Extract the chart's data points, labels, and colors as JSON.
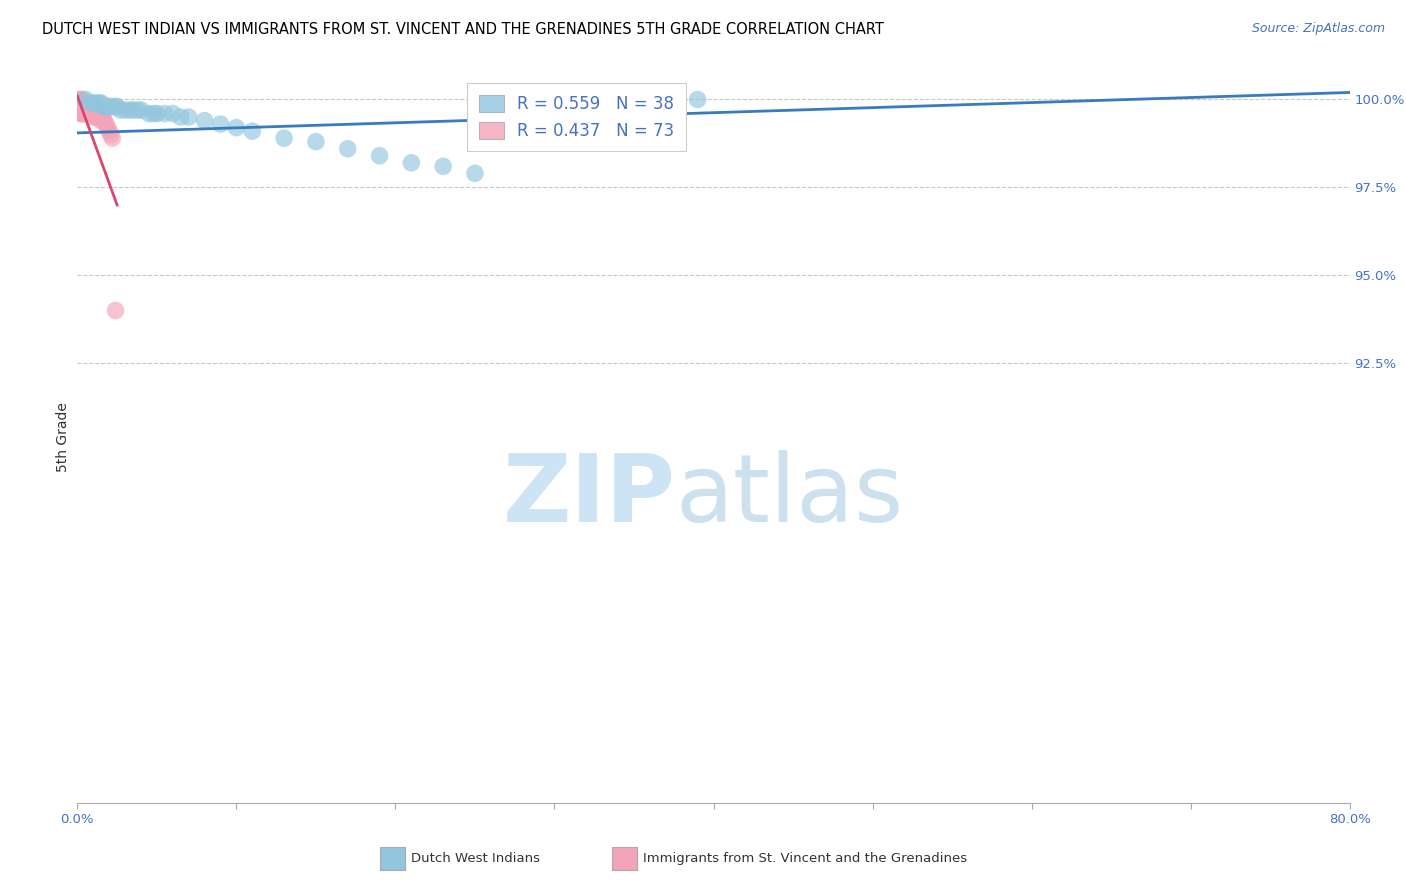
{
  "title": "DUTCH WEST INDIAN VS IMMIGRANTS FROM ST. VINCENT AND THE GRENADINES 5TH GRADE CORRELATION CHART",
  "source": "Source: ZipAtlas.com",
  "ylabel": "5th Grade",
  "xlim": [
    0.0,
    0.8
  ],
  "ylim": [
    0.8,
    1.008
  ],
  "blue_color": "#92c5de",
  "pink_color": "#f4a4b8",
  "blue_line_color": "#3a7abf",
  "pink_line_color": "#d9476e",
  "legend_blue_R": "R = 0.559",
  "legend_blue_N": "N = 38",
  "legend_pink_R": "R = 0.437",
  "legend_pink_N": "N = 73",
  "watermark_zip": "ZIP",
  "watermark_atlas": "atlas",
  "grid_color": "#c8c8c8",
  "background_color": "#ffffff",
  "title_fontsize": 10.5,
  "tick_fontsize": 9.5,
  "legend_fontsize": 12,
  "blue_scatter_x": [
    0.005,
    0.008,
    0.01,
    0.012,
    0.014,
    0.015,
    0.016,
    0.017,
    0.018,
    0.02,
    0.022,
    0.024,
    0.025,
    0.027,
    0.03,
    0.033,
    0.035,
    0.038,
    0.04,
    0.045,
    0.048,
    0.05,
    0.055,
    0.06,
    0.065,
    0.07,
    0.08,
    0.09,
    0.1,
    0.11,
    0.13,
    0.15,
    0.17,
    0.19,
    0.21,
    0.23,
    0.25,
    0.39
  ],
  "blue_scatter_y": [
    1.0,
    0.999,
    0.999,
    0.999,
    0.999,
    0.999,
    0.998,
    0.998,
    0.998,
    0.998,
    0.998,
    0.998,
    0.998,
    0.997,
    0.997,
    0.997,
    0.997,
    0.997,
    0.997,
    0.996,
    0.996,
    0.996,
    0.996,
    0.996,
    0.995,
    0.995,
    0.994,
    0.993,
    0.992,
    0.991,
    0.989,
    0.988,
    0.986,
    0.984,
    0.982,
    0.981,
    0.979,
    1.0
  ],
  "pink_scatter_x": [
    0.001,
    0.001,
    0.001,
    0.001,
    0.001,
    0.001,
    0.002,
    0.002,
    0.002,
    0.002,
    0.002,
    0.002,
    0.002,
    0.002,
    0.003,
    0.003,
    0.003,
    0.003,
    0.003,
    0.003,
    0.003,
    0.003,
    0.003,
    0.004,
    0.004,
    0.004,
    0.004,
    0.004,
    0.004,
    0.004,
    0.005,
    0.005,
    0.005,
    0.005,
    0.005,
    0.005,
    0.006,
    0.006,
    0.006,
    0.007,
    0.007,
    0.007,
    0.007,
    0.008,
    0.008,
    0.008,
    0.009,
    0.009,
    0.01,
    0.01,
    0.01,
    0.01,
    0.01,
    0.011,
    0.011,
    0.012,
    0.012,
    0.012,
    0.013,
    0.013,
    0.014,
    0.014,
    0.015,
    0.015,
    0.016,
    0.016,
    0.017,
    0.018,
    0.019,
    0.02,
    0.021,
    0.022,
    0.024
  ],
  "pink_scatter_y": [
    1.0,
    0.999,
    0.999,
    0.998,
    0.998,
    0.997,
    1.0,
    0.999,
    0.999,
    0.998,
    0.998,
    0.997,
    0.997,
    0.996,
    1.0,
    0.999,
    0.999,
    0.998,
    0.998,
    0.997,
    0.997,
    0.996,
    0.996,
    0.999,
    0.999,
    0.998,
    0.998,
    0.997,
    0.997,
    0.996,
    0.999,
    0.998,
    0.998,
    0.997,
    0.997,
    0.996,
    0.998,
    0.998,
    0.997,
    0.998,
    0.997,
    0.997,
    0.996,
    0.997,
    0.997,
    0.996,
    0.997,
    0.996,
    0.998,
    0.997,
    0.997,
    0.996,
    0.995,
    0.997,
    0.996,
    0.997,
    0.996,
    0.995,
    0.996,
    0.995,
    0.996,
    0.995,
    0.995,
    0.994,
    0.995,
    0.994,
    0.994,
    0.993,
    0.992,
    0.991,
    0.99,
    0.989,
    0.94
  ],
  "blue_line_x": [
    0.0,
    0.8
  ],
  "blue_line_y": [
    0.9905,
    1.002
  ],
  "pink_line_x": [
    0.0,
    0.025
  ],
  "pink_line_y": [
    1.001,
    0.97
  ],
  "ytick_positions": [
    0.925,
    0.95,
    0.975,
    1.0
  ],
  "ytick_labels": [
    "92.5%",
    "95.0%",
    "97.5%",
    "100.0%"
  ],
  "xtick_positions": [
    0.0,
    0.1,
    0.2,
    0.3,
    0.4,
    0.5,
    0.6,
    0.7,
    0.8
  ],
  "legend_bottom_items": [
    "Dutch West Indians",
    "Immigrants from St. Vincent and the Grenadines"
  ]
}
